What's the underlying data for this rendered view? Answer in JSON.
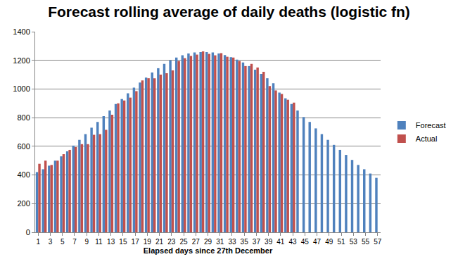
{
  "chart_data": {
    "type": "bar",
    "title": "Forecast rolling average of daily deaths (logistic fn)",
    "x_label": "Elapsed days since 27th December",
    "categories": [
      "1",
      null,
      "3",
      null,
      "5",
      null,
      "7",
      null,
      "9",
      null,
      "11",
      null,
      "13",
      null,
      "15",
      null,
      "17",
      null,
      "19",
      null,
      "21",
      null,
      "23",
      null,
      "25",
      null,
      "27",
      null,
      "29",
      null,
      "31",
      null,
      "33",
      null,
      "35",
      null,
      "37",
      null,
      "39",
      null,
      "41",
      null,
      "43",
      null,
      "45",
      null,
      "47",
      null,
      "49",
      null,
      "51",
      null,
      "53",
      null,
      "55",
      null,
      "57"
    ],
    "series": [
      {
        "name": "Forecast",
        "color": "#4f81bd",
        "values": [
          420,
          440,
          465,
          500,
          530,
          565,
          605,
          645,
          685,
          730,
          770,
          810,
          850,
          895,
          930,
          970,
          1010,
          1045,
          1080,
          1115,
          1145,
          1175,
          1200,
          1220,
          1235,
          1248,
          1255,
          1258,
          1258,
          1255,
          1248,
          1237,
          1222,
          1205,
          1185,
          1160,
          1135,
          1105,
          1075,
          1040,
          975,
          935,
          895,
          850,
          805,
          770,
          725,
          685,
          645,
          610,
          575,
          540,
          505,
          470,
          440,
          410,
          380
        ]
      },
      {
        "name": "Actual",
        "color": "#c0504d",
        "values": [
          478,
          500,
          470,
          500,
          545,
          575,
          595,
          615,
          615,
          680,
          685,
          715,
          820,
          900,
          920,
          940,
          985,
          1060,
          1075,
          1075,
          1100,
          1110,
          1130,
          1195,
          1215,
          1230,
          1240,
          1262,
          1245,
          1235,
          1250,
          1225,
          1220,
          1195,
          1160,
          1175,
          1150,
          1120,
          1020,
          990,
          965,
          925,
          905,
          null,
          null,
          null,
          null,
          null,
          null,
          null,
          null,
          null,
          null,
          null,
          null,
          null,
          null
        ]
      }
    ],
    "ylim": [
      0,
      1400
    ],
    "yticks": [
      0,
      200,
      400,
      600,
      800,
      1000,
      1200,
      1400
    ],
    "grid": true,
    "legend": "right"
  }
}
